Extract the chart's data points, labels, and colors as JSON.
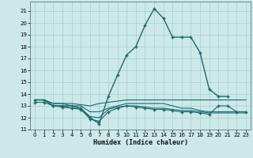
{
  "xlabel": "Humidex (Indice chaleur)",
  "bg_color": "#cce8e8",
  "line_color": "#1a6b6b",
  "grid_color": "#aacccc",
  "xlim": [
    -0.5,
    23.5
  ],
  "ylim": [
    11,
    21.8
  ],
  "yticks": [
    11,
    12,
    13,
    14,
    15,
    16,
    17,
    18,
    19,
    20,
    21
  ],
  "xticks": [
    0,
    1,
    2,
    3,
    4,
    5,
    6,
    7,
    8,
    9,
    10,
    11,
    12,
    13,
    14,
    15,
    16,
    17,
    18,
    19,
    20,
    21,
    22,
    23
  ],
  "series": [
    {
      "x": [
        0,
        1,
        2,
        3,
        4,
        5,
        6,
        7,
        8,
        9,
        10,
        11,
        12,
        13,
        14,
        15,
        16,
        17,
        18,
        19,
        20,
        21
      ],
      "y": [
        13.5,
        13.5,
        13.0,
        13.0,
        13.0,
        12.8,
        12.0,
        11.5,
        13.8,
        15.6,
        17.3,
        18.0,
        19.8,
        21.2,
        20.4,
        18.8,
        18.8,
        18.8,
        17.5,
        14.4,
        13.8,
        13.8
      ],
      "marker": "+",
      "markersize": 3.5,
      "linewidth": 1.0,
      "linestyle": "-"
    },
    {
      "x": [
        0,
        1,
        2,
        3,
        4,
        5,
        6,
        7,
        8,
        9,
        10,
        11,
        12,
        13,
        14,
        15,
        16,
        17,
        18,
        19,
        20,
        21,
        22,
        23
      ],
      "y": [
        13.5,
        13.5,
        13.2,
        13.2,
        13.2,
        13.1,
        13.0,
        13.2,
        13.3,
        13.4,
        13.5,
        13.5,
        13.5,
        13.5,
        13.5,
        13.5,
        13.5,
        13.5,
        13.5,
        13.5,
        13.5,
        13.5,
        13.5,
        13.5
      ],
      "marker": null,
      "markersize": 0,
      "linewidth": 0.8,
      "linestyle": "-"
    },
    {
      "x": [
        0,
        1,
        2,
        3,
        4,
        5,
        6,
        7,
        8,
        9,
        10,
        11,
        12,
        13,
        14,
        15,
        16,
        17,
        18,
        19,
        20,
        21,
        22,
        23
      ],
      "y": [
        13.5,
        13.5,
        13.2,
        13.2,
        13.0,
        13.0,
        12.5,
        12.5,
        12.8,
        13.0,
        13.2,
        13.2,
        13.2,
        13.2,
        13.2,
        13.0,
        12.8,
        12.8,
        12.6,
        12.5,
        12.5,
        12.5,
        12.5,
        12.5
      ],
      "marker": null,
      "markersize": 0,
      "linewidth": 0.8,
      "linestyle": "-"
    },
    {
      "x": [
        0,
        1,
        2,
        3,
        4,
        5,
        6,
        7,
        8,
        9,
        10,
        11,
        12,
        13,
        14,
        15,
        16,
        17,
        18,
        19,
        20,
        21,
        22,
        23
      ],
      "y": [
        13.5,
        13.5,
        13.0,
        13.0,
        12.8,
        12.8,
        12.1,
        12.0,
        12.7,
        12.9,
        13.0,
        13.0,
        12.9,
        12.8,
        12.8,
        12.7,
        12.6,
        12.6,
        12.5,
        12.4,
        12.4,
        12.4,
        12.4,
        12.4
      ],
      "marker": null,
      "markersize": 0,
      "linewidth": 0.8,
      "linestyle": "-"
    },
    {
      "x": [
        0,
        1,
        2,
        3,
        4,
        5,
        6,
        7,
        8,
        9,
        10,
        11,
        12,
        13,
        14,
        15,
        16,
        17,
        18,
        19,
        20,
        21,
        22,
        23
      ],
      "y": [
        13.3,
        13.3,
        13.0,
        12.9,
        12.8,
        12.7,
        11.9,
        11.7,
        12.5,
        12.8,
        13.0,
        12.9,
        12.8,
        12.7,
        12.7,
        12.6,
        12.5,
        12.5,
        12.4,
        12.3,
        13.0,
        13.0,
        12.5,
        12.5
      ],
      "marker": "+",
      "markersize": 2.5,
      "linewidth": 0.8,
      "linestyle": "-"
    }
  ]
}
